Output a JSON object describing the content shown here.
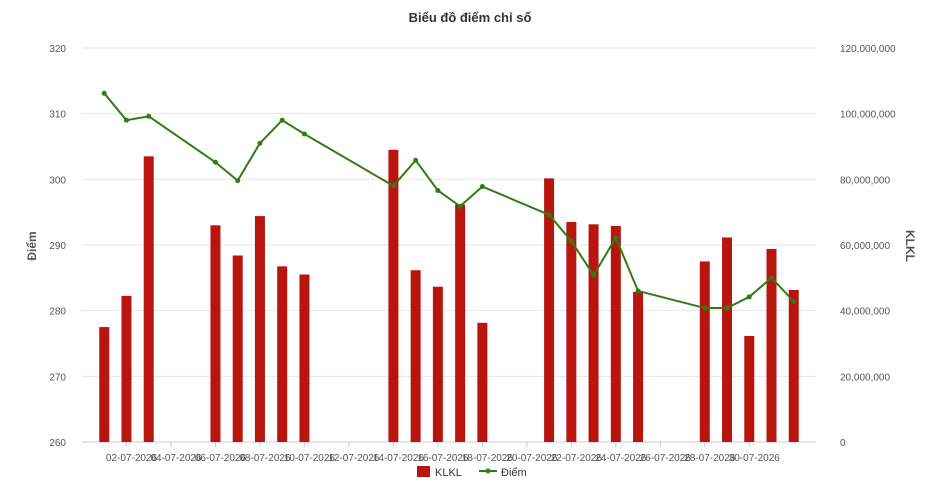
{
  "chart_data": {
    "type": "bar",
    "title": "Biểu đồ điểm chỉ số",
    "ylabel_left": "Điểm",
    "ylabel_right": "KLKL",
    "ylim_left": [
      260,
      320
    ],
    "ylim_right": [
      0,
      120000000
    ],
    "y_ticks_left": [
      "320",
      "310",
      "300",
      "290",
      "280",
      "270",
      "260"
    ],
    "y_ticks_right": [
      "120,000,000",
      "100,000,000",
      "80,000,000",
      "60,000,000",
      "40,000,000",
      "20,000,000",
      "0"
    ],
    "y_ticks_left_values": [
      320,
      310,
      300,
      290,
      280,
      270,
      260
    ],
    "y_ticks_right_values": [
      120000000,
      100000000,
      80000000,
      60000000,
      40000000,
      20000000,
      0
    ],
    "x_tick_labels": [
      "02-07-2026",
      "04-07-2026",
      "06-07-2026",
      "08-07-2026",
      "10-07-2026",
      "12-07-2026",
      "14-07-2026",
      "16-07-2026",
      "18-07-2026",
      "20-07-2026",
      "22-07-2026",
      "24-07-2026",
      "26-07-2026",
      "28-07-2026",
      "30-07-2026"
    ],
    "grid": true,
    "legend_position": "bottom",
    "series": [
      {
        "name": "KLKL",
        "type": "bar",
        "axis": "right",
        "color": "#b8150f",
        "points": [
          {
            "day": 1,
            "value": 35000000
          },
          {
            "day": 2,
            "value": 44500000
          },
          {
            "day": 3,
            "value": 87000000
          },
          {
            "day": 6,
            "value": 66000000
          },
          {
            "day": 7,
            "value": 56800000
          },
          {
            "day": 8,
            "value": 68800000
          },
          {
            "day": 9,
            "value": 53500000
          },
          {
            "day": 10,
            "value": 51000000
          },
          {
            "day": 14,
            "value": 89000000
          },
          {
            "day": 15,
            "value": 52300000
          },
          {
            "day": 16,
            "value": 47300000
          },
          {
            "day": 17,
            "value": 72300000
          },
          {
            "day": 18,
            "value": 36300000
          },
          {
            "day": 21,
            "value": 80300000
          },
          {
            "day": 22,
            "value": 67000000
          },
          {
            "day": 23,
            "value": 66300000
          },
          {
            "day": 24,
            "value": 65800000
          },
          {
            "day": 25,
            "value": 45700000
          },
          {
            "day": 28,
            "value": 55000000
          },
          {
            "day": 29,
            "value": 62300000
          },
          {
            "day": 30,
            "value": 32300000
          },
          {
            "day": 31,
            "value": 58800000
          },
          {
            "day": 32,
            "value": 46300000
          }
        ]
      },
      {
        "name": "Điểm",
        "type": "line",
        "axis": "left",
        "color": "#2f7d12",
        "points": [
          {
            "day": 1,
            "value": 313.1
          },
          {
            "day": 2,
            "value": 309.0
          },
          {
            "day": 3,
            "value": 309.6
          },
          {
            "day": 6,
            "value": 302.6
          },
          {
            "day": 7,
            "value": 299.8
          },
          {
            "day": 8,
            "value": 305.5
          },
          {
            "day": 9,
            "value": 309.0
          },
          {
            "day": 10,
            "value": 306.9
          },
          {
            "day": 14,
            "value": 299.0
          },
          {
            "day": 15,
            "value": 302.9
          },
          {
            "day": 16,
            "value": 298.3
          },
          {
            "day": 17,
            "value": 295.9
          },
          {
            "day": 18,
            "value": 298.9
          },
          {
            "day": 21,
            "value": 294.6
          },
          {
            "day": 22,
            "value": 290.6
          },
          {
            "day": 23,
            "value": 285.4
          },
          {
            "day": 24,
            "value": 291.1
          },
          {
            "day": 25,
            "value": 283.0
          },
          {
            "day": 28,
            "value": 280.4
          },
          {
            "day": 29,
            "value": 280.4
          },
          {
            "day": 30,
            "value": 282.1
          },
          {
            "day": 31,
            "value": 285.0
          },
          {
            "day": 32,
            "value": 281.4
          }
        ]
      }
    ]
  }
}
